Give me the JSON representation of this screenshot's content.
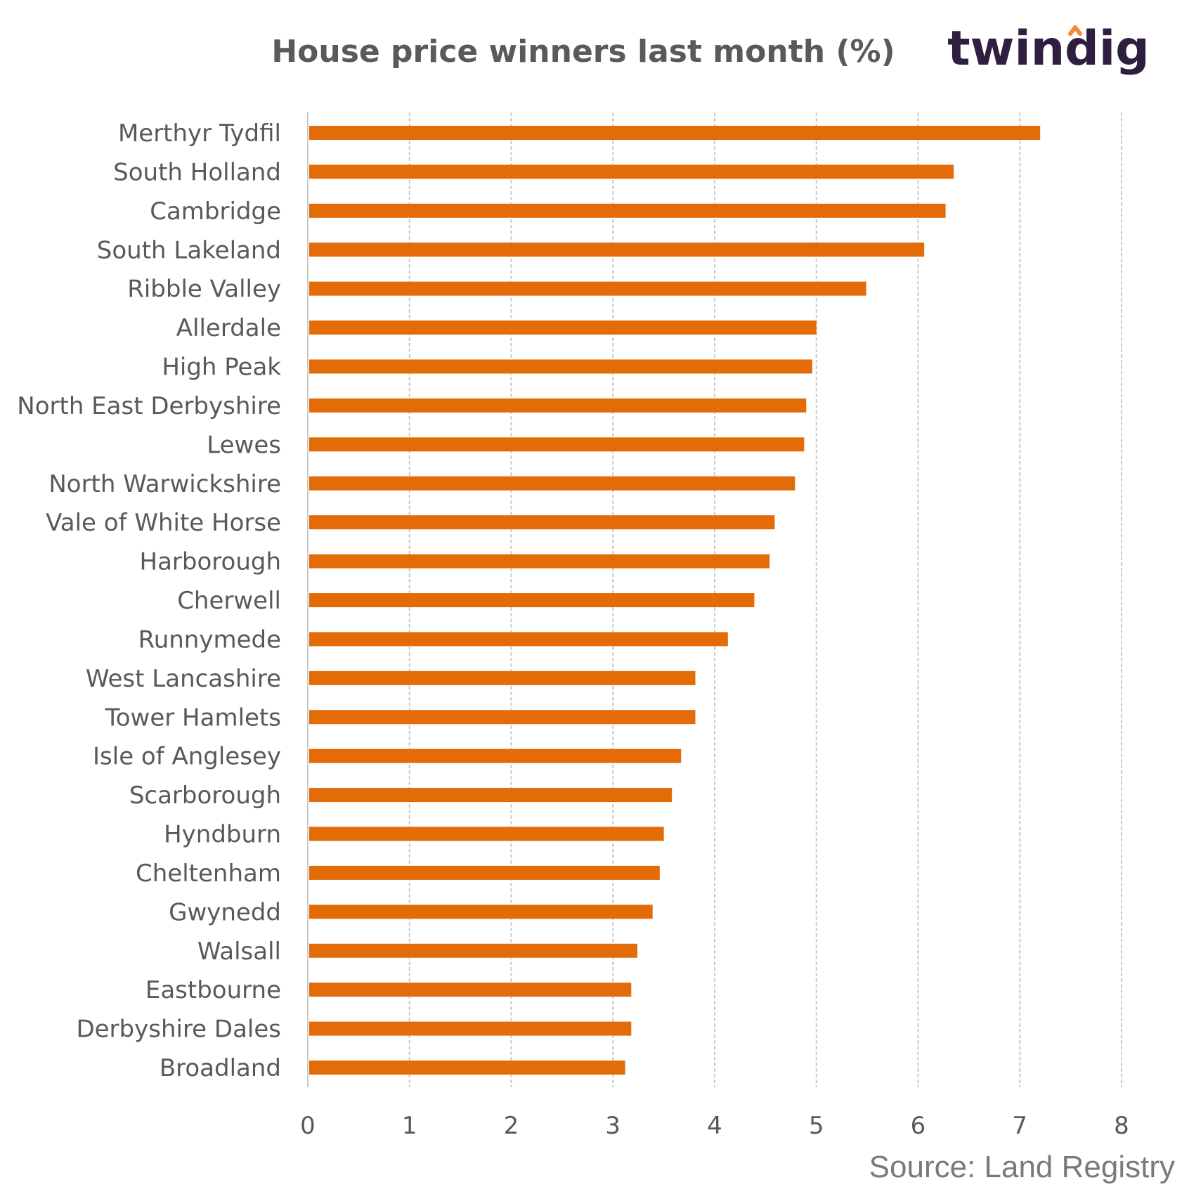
{
  "chart_data": {
    "type": "bar",
    "orientation": "horizontal",
    "title": "House price winners last month (%)",
    "categories": [
      "Merthyr Tydfil",
      "South Holland",
      "Cambridge",
      "South Lakeland",
      "Ribble Valley",
      "Allerdale",
      "High Peak",
      "North East Derbyshire",
      "Lewes",
      "North Warwickshire",
      "Vale of White Horse",
      "Harborough",
      "Cherwell",
      "Runnymede",
      "West Lancashire",
      "Tower Hamlets",
      "Isle of Anglesey",
      "Scarborough",
      "Hyndburn",
      "Cheltenham",
      "Gwynedd",
      "Walsall",
      "Eastbourne",
      "Derbyshire Dales",
      "Broadland"
    ],
    "values": [
      7.2,
      6.35,
      6.27,
      6.06,
      5.49,
      5.0,
      4.96,
      4.9,
      4.88,
      4.79,
      4.59,
      4.54,
      4.39,
      4.13,
      3.81,
      3.81,
      3.67,
      3.58,
      3.5,
      3.46,
      3.39,
      3.24,
      3.18,
      3.18,
      3.12
    ],
    "xlim": [
      0,
      8
    ],
    "xticks": [
      "0",
      "1",
      "2",
      "3",
      "4",
      "5",
      "6",
      "7",
      "8"
    ],
    "grid": true,
    "bar_color": "#e36c09",
    "grid_color": "#c8c8c8"
  },
  "brand": {
    "name": "twindig",
    "dot_accent_color": "#f28a3c"
  },
  "source": "Source: Land Registry"
}
